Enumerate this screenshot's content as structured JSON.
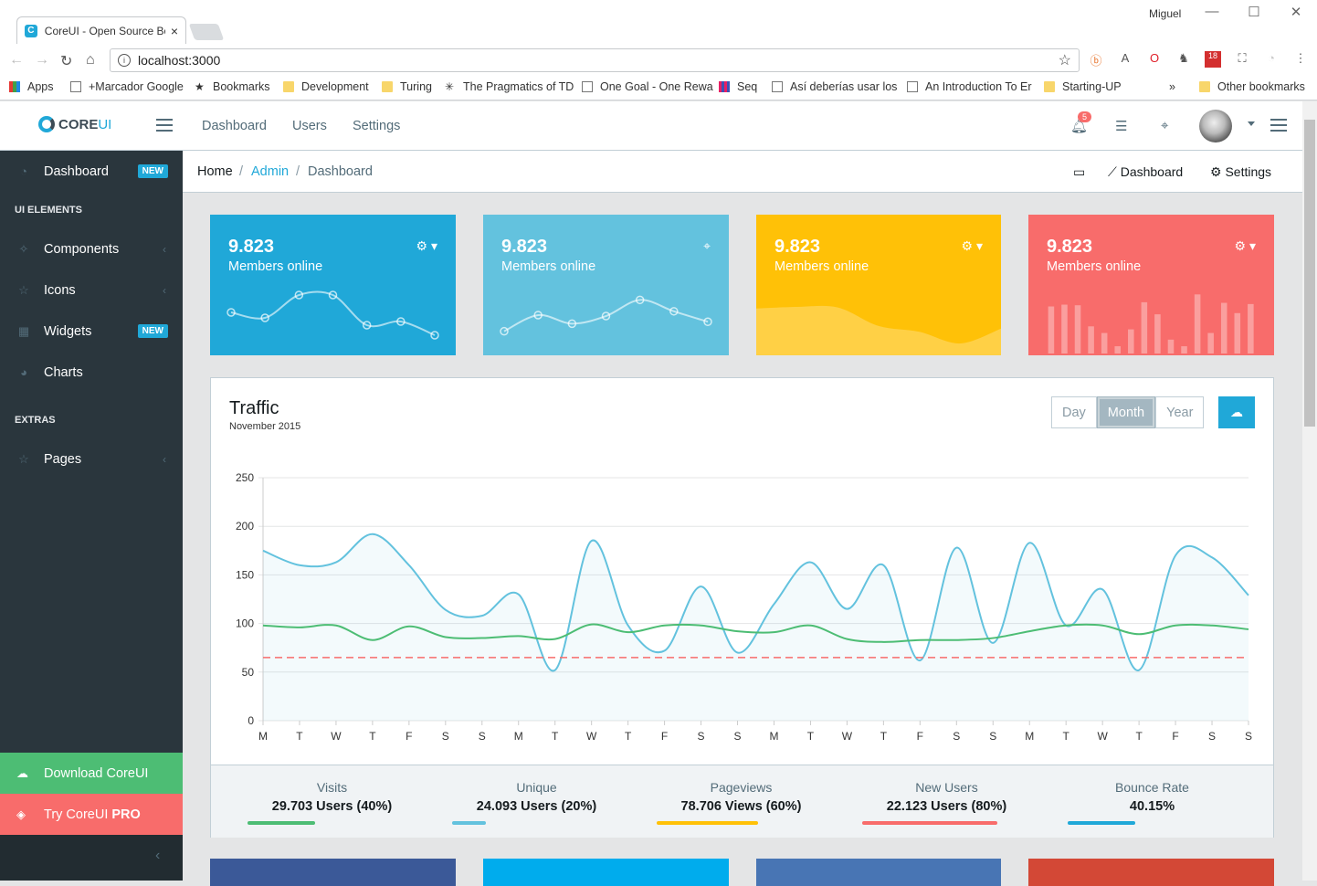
{
  "browser": {
    "tab_title": "CoreUI - Open Source Bo",
    "tab_icon": "C",
    "tab_close": "×",
    "profile": "Miguel",
    "url": "localhost:3000",
    "info_icon": "i",
    "bookmarks": [
      {
        "label": "Apps",
        "icon": "apps"
      },
      {
        "label": "+Marcador Google",
        "icon": "page"
      },
      {
        "label": "Bookmarks",
        "icon": "star"
      },
      {
        "label": "Development",
        "icon": "folder"
      },
      {
        "label": "Turing",
        "icon": "folder"
      },
      {
        "label": "The Pragmatics of TD",
        "icon": "burst"
      },
      {
        "label": "One Goal - One Rewa",
        "icon": "page"
      },
      {
        "label": "Seq",
        "icon": "seq"
      },
      {
        "label": "Así deberías usar los",
        "icon": "page"
      },
      {
        "label": "An Introduction To Er",
        "icon": "page"
      },
      {
        "label": "Starting-UP",
        "icon": "folder"
      },
      {
        "label": "Other bookmarks",
        "icon": "folder"
      }
    ],
    "overflow": "»",
    "ext_badge": "18"
  },
  "header": {
    "brand_core": "CORE",
    "brand_ui": "UI",
    "nav": [
      "Dashboard",
      "Users",
      "Settings"
    ],
    "notification_count": "5"
  },
  "sidebar": {
    "items": [
      {
        "label": "Dashboard",
        "badge": "NEW",
        "icon": "speedometer-icon"
      },
      {
        "label": "Components",
        "icon": "puzzle-icon"
      },
      {
        "label": "Icons",
        "icon": "star-icon"
      },
      {
        "label": "Widgets",
        "badge": "NEW",
        "icon": "calculator-icon"
      },
      {
        "label": "Charts",
        "icon": "pie-chart-icon"
      },
      {
        "label": "Pages",
        "icon": "star-icon"
      }
    ],
    "section_ui": "UI ELEMENTS",
    "section_extras": "EXTRAS",
    "download": "Download CoreUI",
    "try": "Try CoreUI",
    "pro": "PRO"
  },
  "breadcrumb": {
    "home": "Home",
    "admin": "Admin",
    "current": "Dashboard",
    "menu_dashboard": "Dashboard",
    "menu_settings": "Settings"
  },
  "cards": [
    {
      "value": "9.823",
      "label": "Members online",
      "color": "#20a8d8"
    },
    {
      "value": "9.823",
      "label": "Members online",
      "color": "#63c2de"
    },
    {
      "value": "9.823",
      "label": "Members online",
      "color": "#ffc107"
    },
    {
      "value": "9.823",
      "label": "Members online",
      "color": "#f86c6b"
    }
  ],
  "card_charts": {
    "card1_line": [
      65,
      59,
      84,
      84,
      51,
      55,
      40
    ],
    "card2_line": [
      1,
      18,
      9,
      17,
      34,
      22,
      11
    ],
    "card3_area": [
      78,
      81,
      80,
      45,
      34,
      12,
      40
    ],
    "card4_bars": [
      78,
      81,
      80,
      45,
      34,
      12,
      40,
      85,
      65,
      23,
      12,
      98,
      34,
      84,
      67,
      82
    ]
  },
  "traffic": {
    "title": "Traffic",
    "subtitle": "November 2015",
    "periods": [
      "Day",
      "Month",
      "Year"
    ],
    "active_period": "Month",
    "stats": [
      {
        "label": "Visits",
        "value": "29.703 Users (40%)",
        "pct": 40,
        "color": "#4dbd74"
      },
      {
        "label": "Unique",
        "value": "24.093 Users (20%)",
        "pct": 20,
        "color": "#63c2de"
      },
      {
        "label": "Pageviews",
        "value": "78.706 Views (60%)",
        "pct": 60,
        "color": "#ffc107"
      },
      {
        "label": "New Users",
        "value": "22.123 Users (80%)",
        "pct": 80,
        "color": "#f86c6b"
      },
      {
        "label": "Bounce Rate",
        "value": "40.15%",
        "pct": 40.15,
        "color": "#20a8d8"
      }
    ]
  },
  "chart_data": {
    "type": "line",
    "categories": [
      "M",
      "T",
      "W",
      "T",
      "F",
      "S",
      "S",
      "M",
      "T",
      "W",
      "T",
      "F",
      "S",
      "S",
      "M",
      "T",
      "W",
      "T",
      "F",
      "S",
      "S",
      "M",
      "T",
      "W",
      "T",
      "F",
      "S",
      "S"
    ],
    "series": [
      {
        "values": [
          175,
          160,
          163,
          192,
          160,
          114,
          108,
          130,
          52,
          185,
          98,
          72,
          138,
          70,
          120,
          163,
          115,
          160,
          62,
          178,
          80,
          183,
          98,
          135,
          52,
          170,
          168,
          129
        ],
        "color": "#63c2de",
        "fill": true
      },
      {
        "values": [
          98,
          96,
          98,
          83,
          97,
          86,
          85,
          87,
          84,
          99,
          91,
          98,
          98,
          92,
          91,
          98,
          84,
          81,
          83,
          83,
          85,
          92,
          98,
          98,
          89,
          98,
          98,
          94
        ],
        "color": "#4dbd74"
      },
      {
        "values": [
          65,
          65,
          65,
          65,
          65,
          65,
          65,
          65,
          65,
          65,
          65,
          65,
          65,
          65,
          65,
          65,
          65,
          65,
          65,
          65,
          65,
          65,
          65,
          65,
          65,
          65,
          65,
          65
        ],
        "color": "#f86c6b",
        "dashed": true
      }
    ],
    "ylim": [
      0,
      250
    ],
    "yticks": [
      0,
      50,
      100,
      150,
      200,
      250
    ],
    "grid": true
  }
}
